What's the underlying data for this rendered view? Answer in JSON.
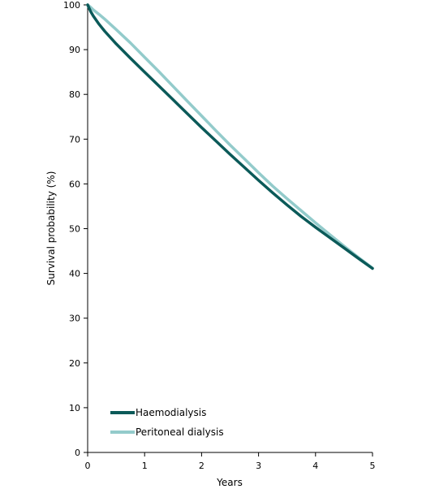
{
  "chart_data": {
    "type": "line",
    "title": "",
    "xlabel": "Years",
    "ylabel": "Survival probability (%)",
    "xlim": [
      0,
      5
    ],
    "ylim": [
      0,
      100
    ],
    "xticks": [
      "0",
      "1",
      "2",
      "3",
      "4",
      "5"
    ],
    "yticks": [
      "0",
      "10",
      "20",
      "30",
      "40",
      "50",
      "60",
      "70",
      "80",
      "90",
      "100"
    ],
    "grid": false,
    "legend_position": "bottom-left",
    "series": [
      {
        "name": "Haemodialysis",
        "color": "#0b5a59",
        "x": [
          0,
          0.05,
          0.1,
          0.2,
          0.3,
          0.5,
          0.75,
          1,
          1.25,
          1.5,
          1.75,
          2,
          2.25,
          2.5,
          2.75,
          3,
          3.25,
          3.5,
          3.75,
          4,
          4.25,
          4.5,
          4.75,
          5
        ],
        "y": [
          100,
          98.6,
          97.5,
          95.7,
          94.1,
          91.3,
          88.1,
          85.0,
          81.9,
          78.8,
          75.7,
          72.6,
          69.6,
          66.6,
          63.7,
          60.8,
          58.0,
          55.3,
          52.7,
          50.3,
          48.0,
          45.7,
          43.4,
          41.1
        ]
      },
      {
        "name": "Peritoneal dialysis",
        "color": "#93cbcb",
        "x": [
          0,
          0.05,
          0.1,
          0.2,
          0.3,
          0.5,
          0.75,
          1,
          1.25,
          1.5,
          1.75,
          2,
          2.25,
          2.5,
          2.75,
          3,
          3.25,
          3.5,
          3.75,
          4,
          4.25,
          4.5,
          4.75,
          5
        ],
        "y": [
          100,
          99.5,
          98.9,
          97.9,
          96.8,
          94.5,
          91.5,
          88.3,
          85.1,
          81.8,
          78.5,
          75.2,
          71.9,
          68.7,
          65.6,
          62.5,
          59.5,
          56.7,
          54.0,
          51.3,
          48.7,
          46.1,
          43.6,
          41.2
        ]
      }
    ]
  }
}
